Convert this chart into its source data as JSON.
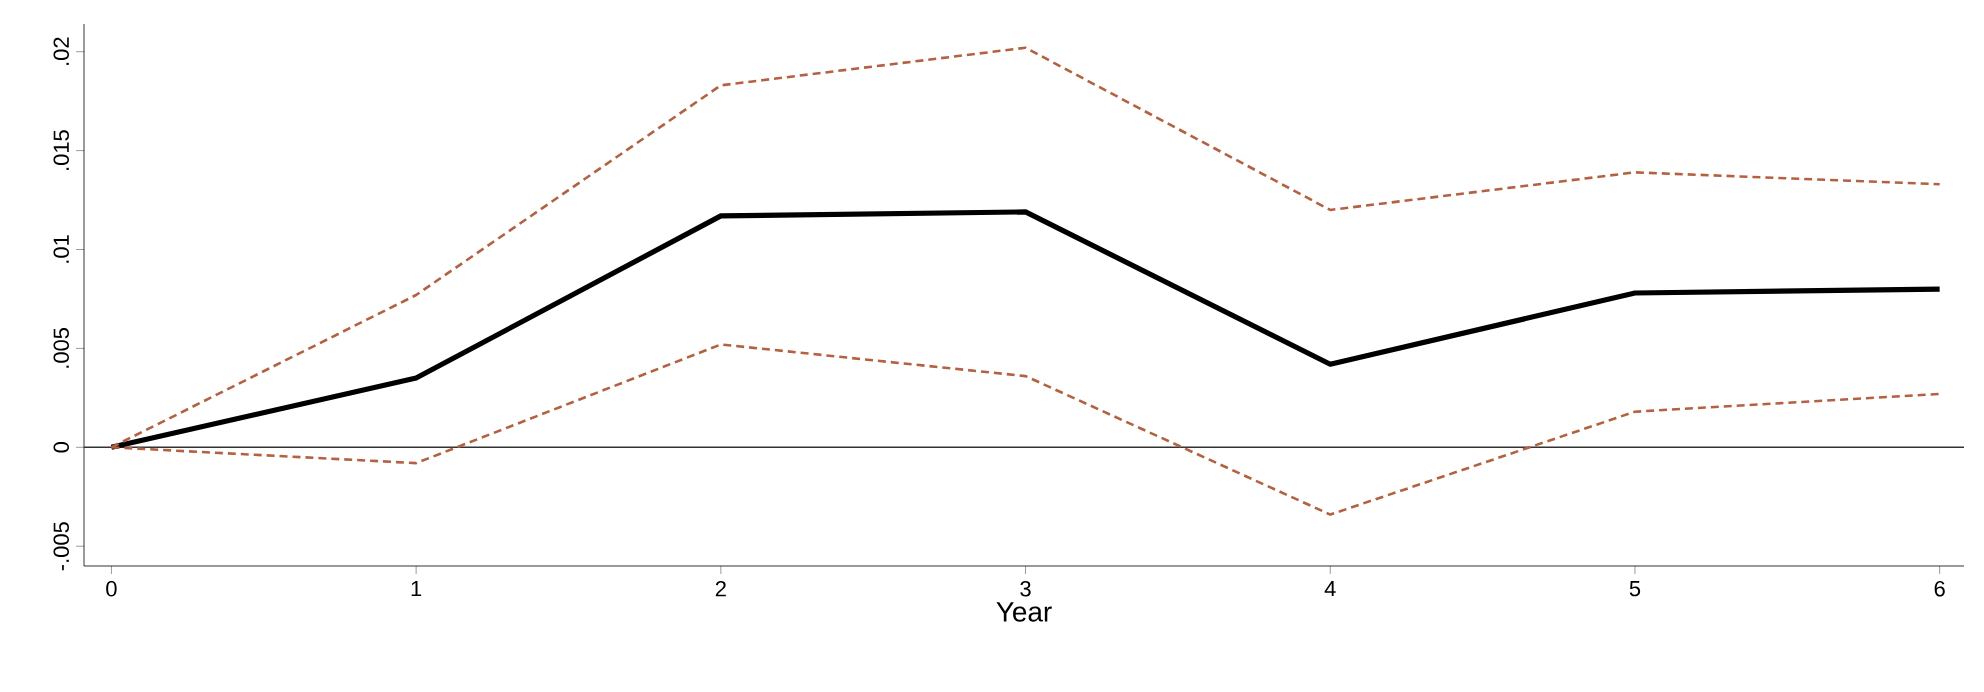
{
  "chart_data": {
    "type": "line",
    "xlabel": "Year",
    "x": [
      0,
      1,
      2,
      3,
      4,
      5,
      6
    ],
    "series": [
      {
        "color": "#000000",
        "values": [
          0,
          0.0035,
          0.0117,
          0.0119,
          0.0042,
          0.0078,
          0.008
        ],
        "line_style": "solid"
      },
      {
        "color": "#b5603f",
        "values": [
          0,
          0.0077,
          0.0183,
          0.0202,
          0.012,
          0.0139,
          0.0133
        ],
        "line_style": "dashed"
      },
      {
        "color": "#b5603f",
        "values": [
          0,
          -0.0008,
          0.0052,
          0.0036,
          -0.0034,
          0.0018,
          0.0027
        ],
        "line_style": "dashed"
      }
    ],
    "xlim": [
      -0.09,
      6.08
    ],
    "ylim": [
      -0.006,
      0.0214
    ],
    "xticks": [
      0,
      1,
      2,
      3,
      4,
      5,
      6
    ],
    "yticks": [
      {
        "value": -0.005,
        "label": "-.005"
      },
      {
        "value": 0,
        "label": "0"
      },
      {
        "value": 0.005,
        "label": ".005"
      },
      {
        "value": 0.01,
        "label": ".01"
      },
      {
        "value": 0.015,
        "label": ".015"
      },
      {
        "value": 0.02,
        "label": ".02"
      }
    ],
    "ref_lines": [
      {
        "axis": "y",
        "value": 0,
        "color": "#333333"
      }
    ],
    "grid": false,
    "marker": "none"
  }
}
